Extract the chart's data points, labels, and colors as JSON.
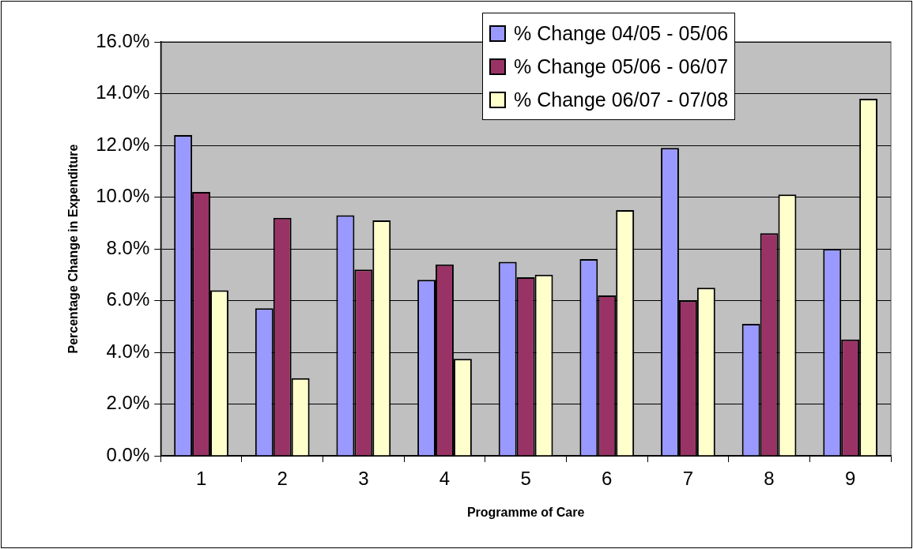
{
  "chart_data": {
    "type": "bar",
    "xlabel": "Programme of Care",
    "ylabel": "Percentage Change in Expenditure",
    "categories": [
      "1",
      "2",
      "3",
      "4",
      "5",
      "6",
      "7",
      "8",
      "9"
    ],
    "series": [
      {
        "name": "% Change 04/05 - 05/06",
        "color": "#9999ff",
        "values": [
          12.4,
          5.7,
          9.3,
          6.8,
          7.5,
          7.6,
          11.9,
          5.1,
          8.0
        ]
      },
      {
        "name": "% Change 05/06 - 06/07",
        "color": "#993366",
        "values": [
          10.2,
          9.2,
          7.2,
          7.4,
          6.9,
          6.2,
          6.0,
          8.6,
          4.5
        ]
      },
      {
        "name": "% Change 06/07 - 07/08",
        "color": "#ffffcc",
        "values": [
          6.4,
          3.0,
          9.1,
          3.75,
          7.0,
          9.5,
          6.5,
          10.1,
          13.8
        ]
      }
    ],
    "ylim": [
      0,
      16
    ],
    "yticks": [
      {
        "value": 0,
        "label": "0.0%"
      },
      {
        "value": 2,
        "label": "2.0%"
      },
      {
        "value": 4,
        "label": "4.0%"
      },
      {
        "value": 6,
        "label": "6.0%"
      },
      {
        "value": 8,
        "label": "8.0%"
      },
      {
        "value": 10,
        "label": "10.0%"
      },
      {
        "value": 12,
        "label": "12.0%"
      },
      {
        "value": 14,
        "label": "14.0%"
      },
      {
        "value": 16,
        "label": "16.0%"
      }
    ],
    "grid": "y",
    "legend": "top right"
  }
}
